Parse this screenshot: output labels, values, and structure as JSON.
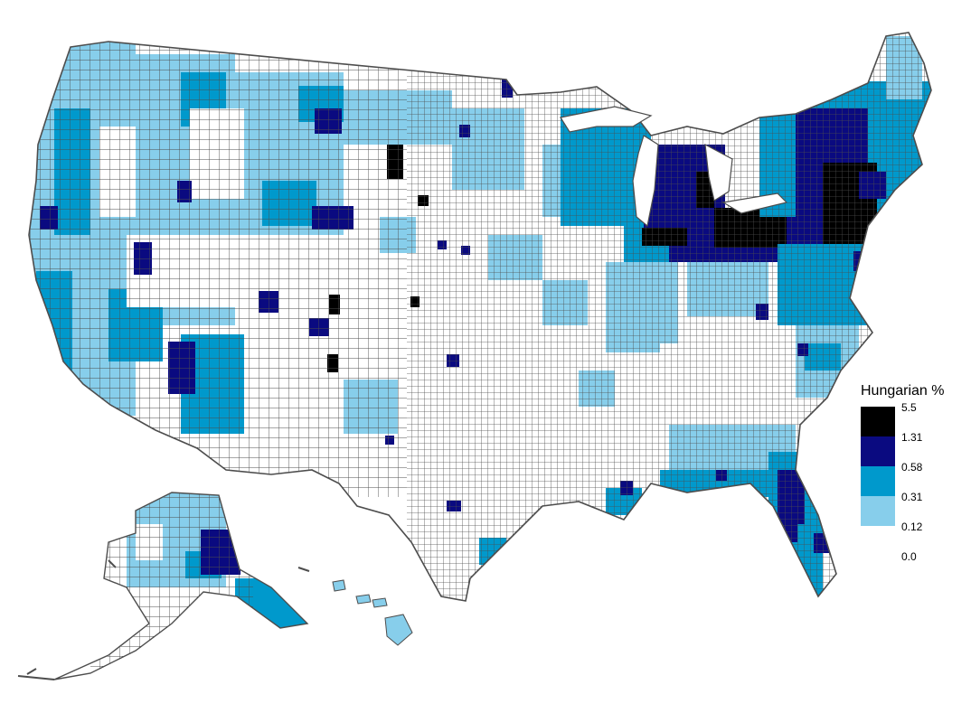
{
  "map": {
    "legend": {
      "title": "Hungarian %",
      "breaks": [
        "5.5",
        "1.31",
        "0.58",
        "0.31",
        "0.12",
        "0.0"
      ],
      "bins": [
        {
          "range": "1.31-5.5",
          "color": "#000000"
        },
        {
          "range": "0.58-1.31",
          "color": "#0a0a80"
        },
        {
          "range": "0.31-0.58",
          "color": "#0099cc"
        },
        {
          "range": "0.12-0.31",
          "color": "#87ceeb"
        },
        {
          "range": "0.0-0.12",
          "color": "#ffffff"
        }
      ]
    },
    "colors": {
      "border": "#4d4d4d",
      "background": "#ffffff"
    },
    "regions": [
      "Contiguous United States",
      "Alaska",
      "Hawaii"
    ]
  }
}
